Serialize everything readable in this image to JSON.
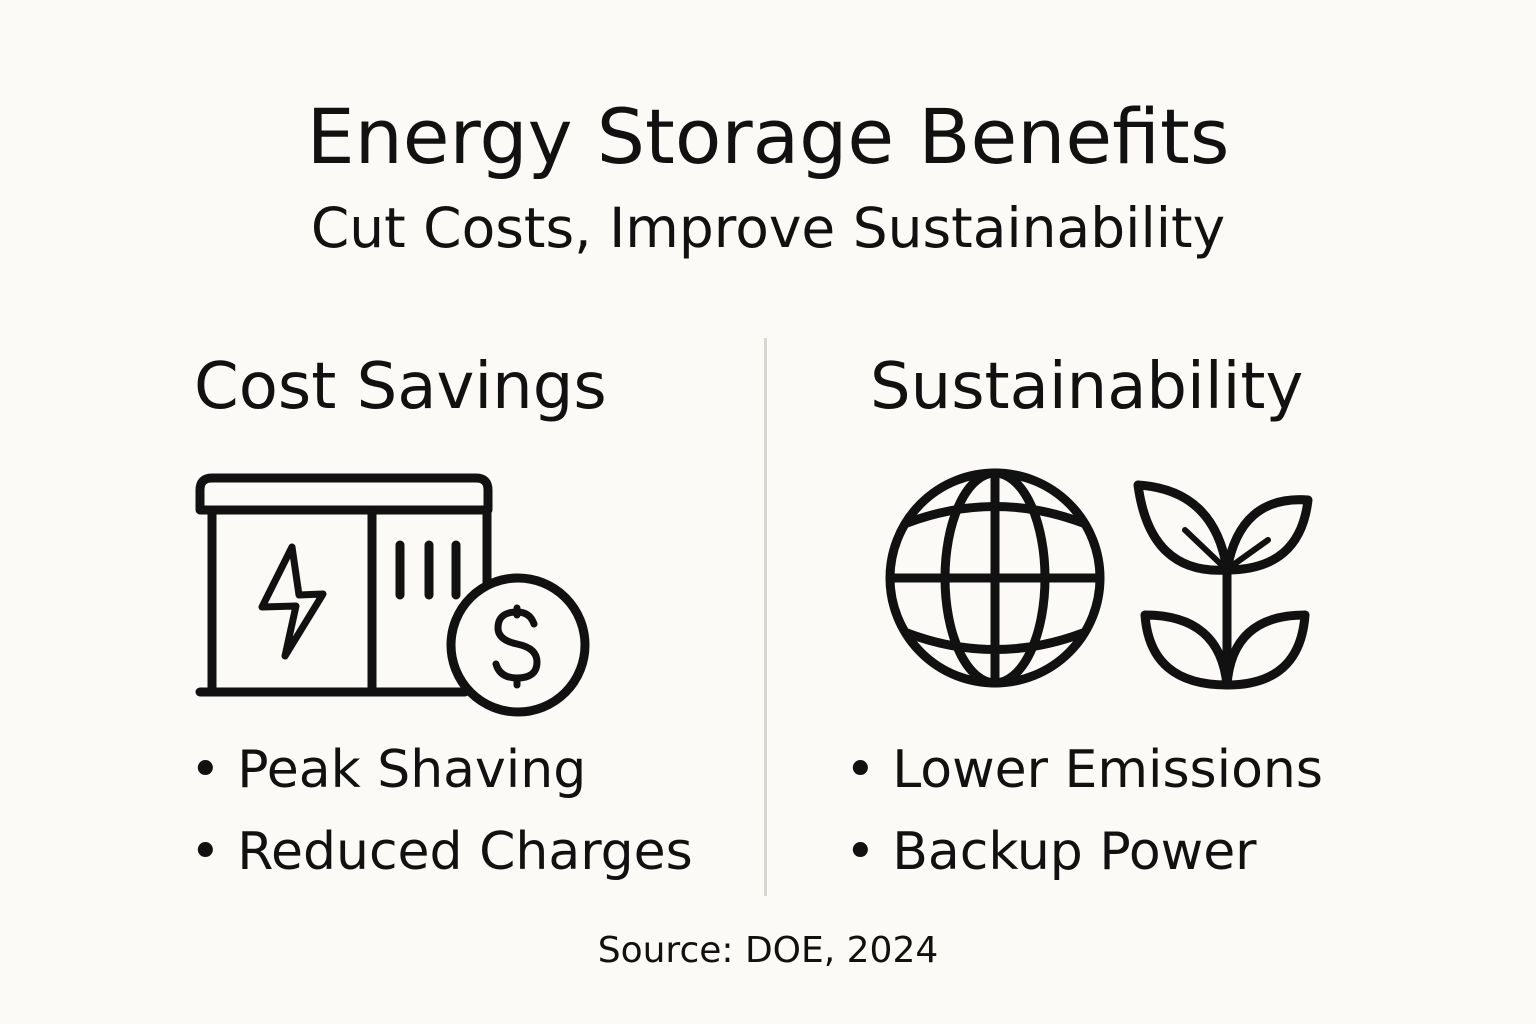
{
  "title": "Energy Storage Benefits",
  "subtitle": "Cut Costs, Improve Sustainability",
  "columns": [
    {
      "heading": "Cost Savings",
      "icon": "battery-storage-with-dollar-coin-icon",
      "bullets": [
        "Peak Shaving",
        "Reduced Charges"
      ]
    },
    {
      "heading": "Sustainability",
      "icons": [
        "globe-icon",
        "plant-sprout-icon"
      ],
      "bullets": [
        "Lower Emissions",
        "Backup Power"
      ]
    }
  ],
  "source": "Source: DOE, 2024",
  "colors": {
    "background": "#fbfaf6",
    "ink": "#111111",
    "divider": "#d8d6d0"
  }
}
